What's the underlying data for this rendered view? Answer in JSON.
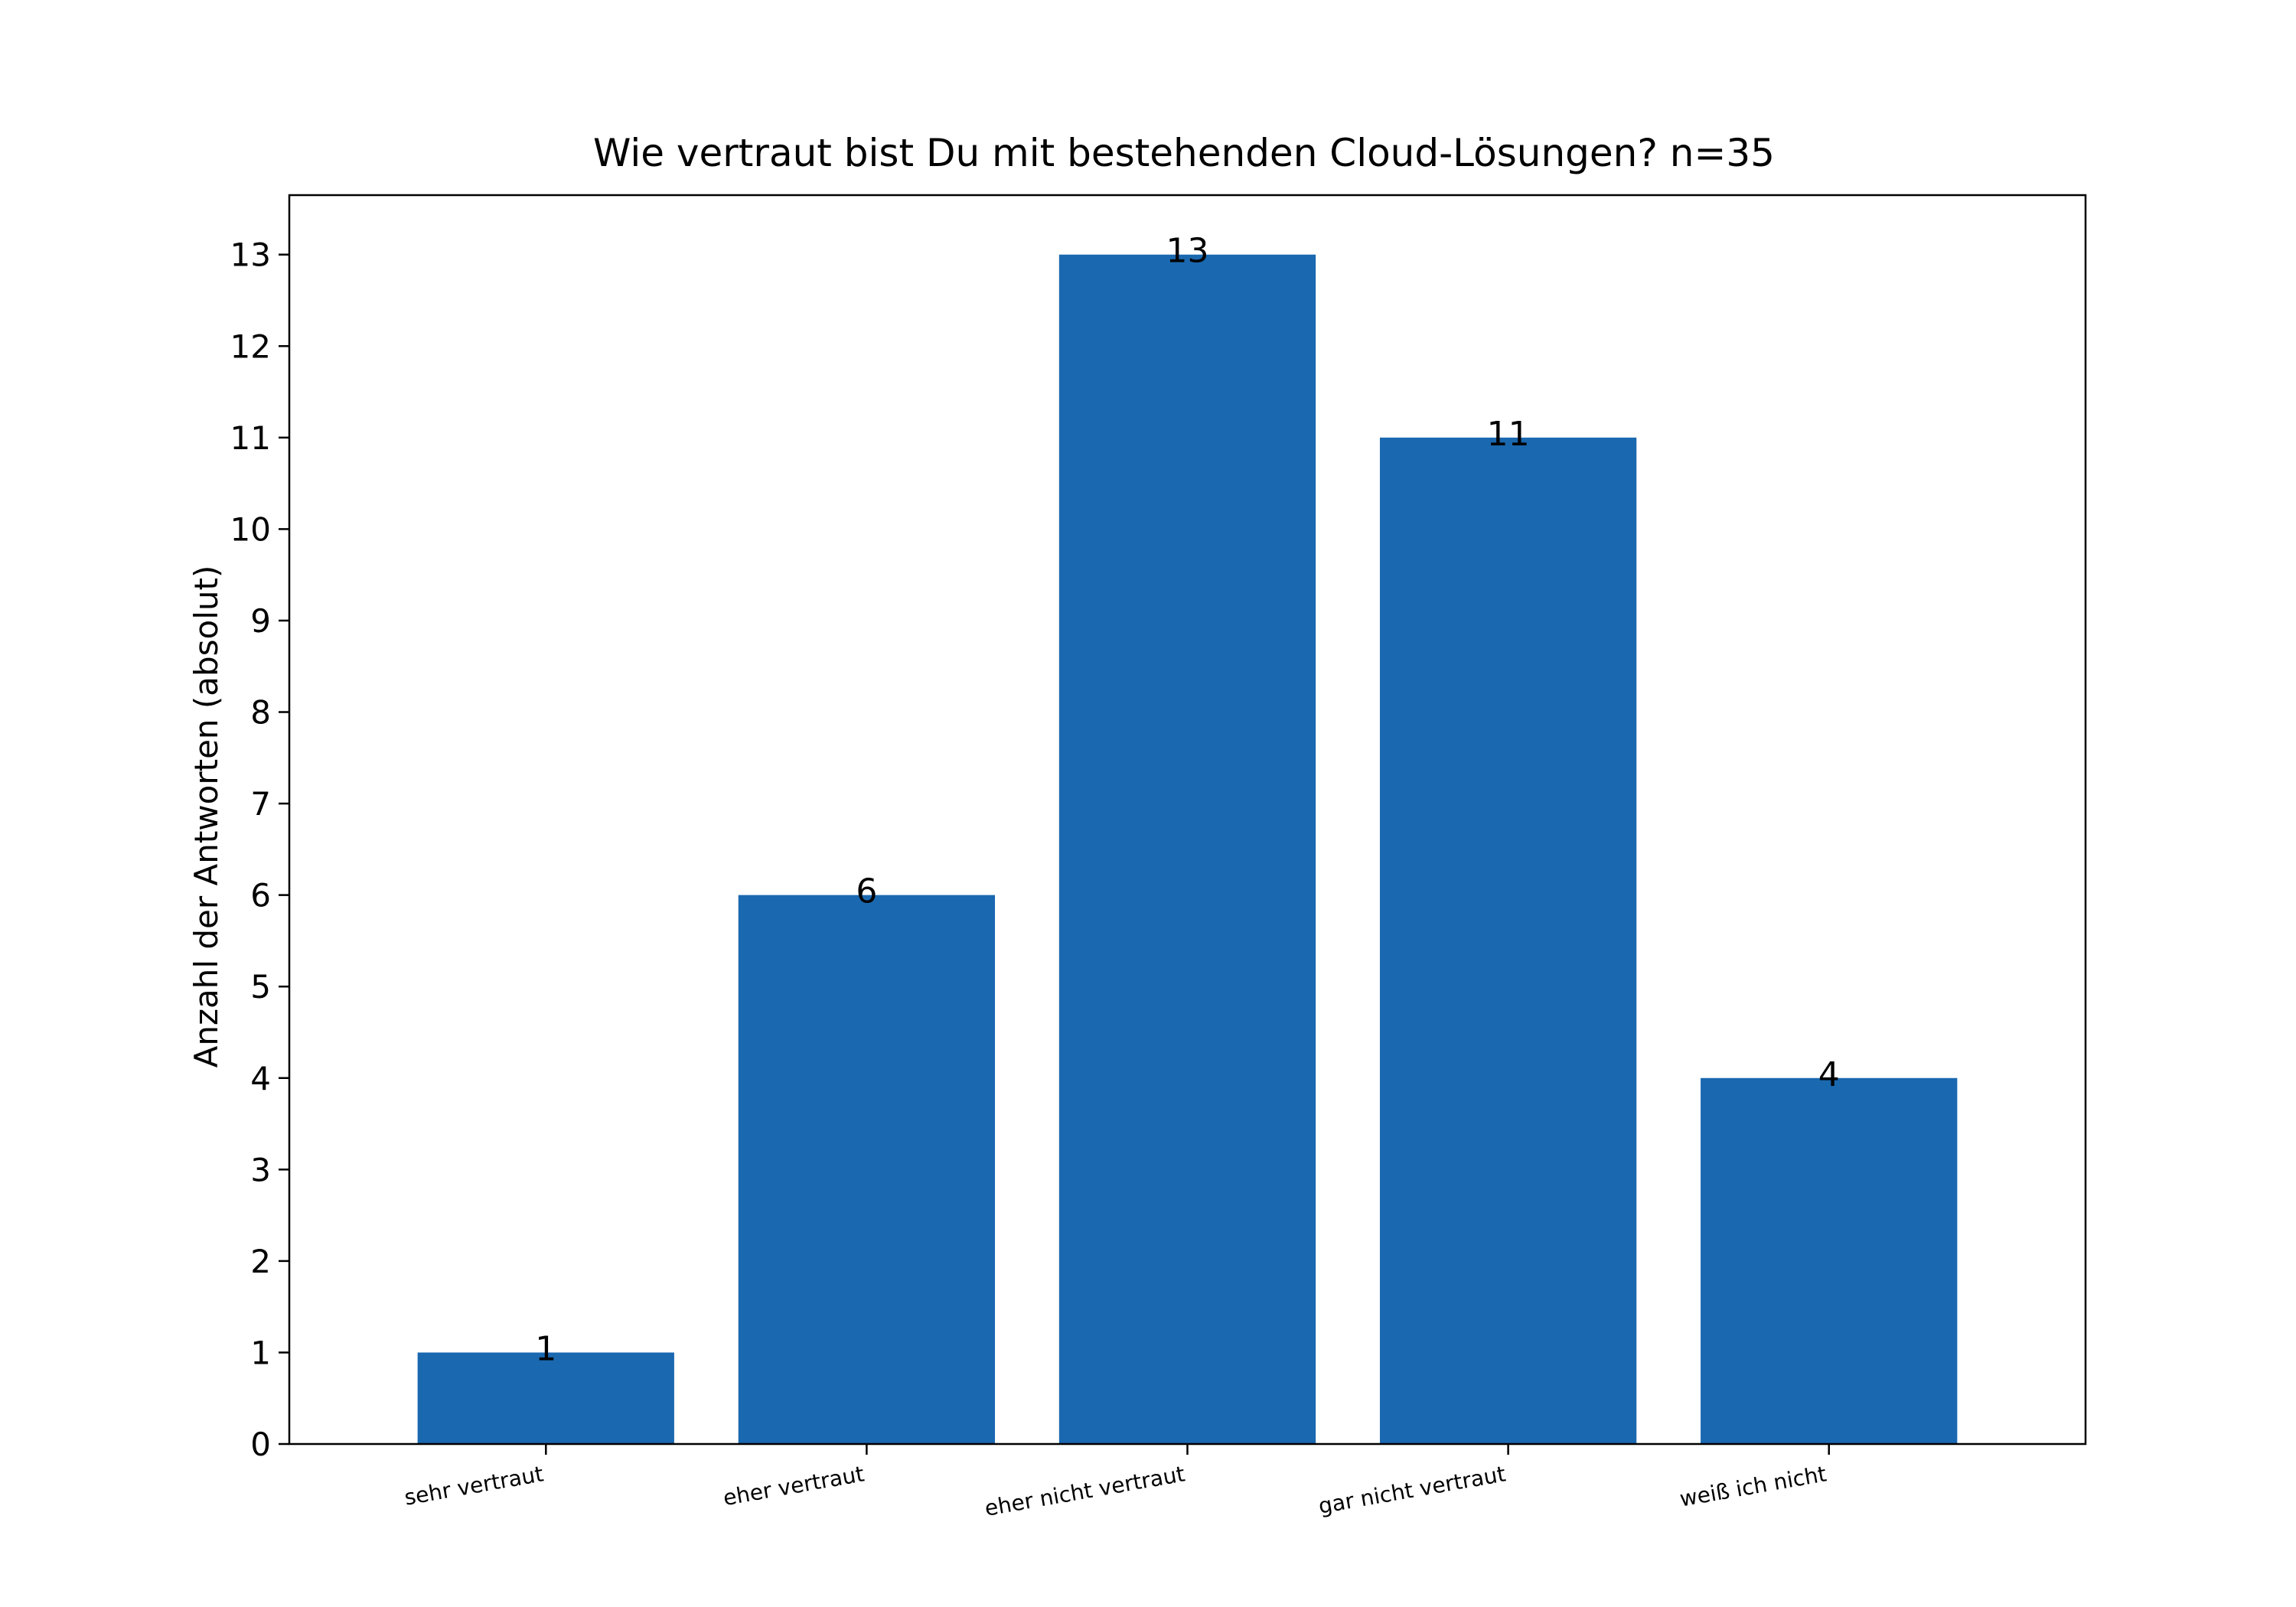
{
  "chart_data": {
    "type": "bar",
    "title": "Wie vertraut bist Du mit bestehenden Cloud-Lösungen? n=35",
    "xlabel": "",
    "ylabel": "Anzahl der Antworten (absolut)",
    "categories": [
      "sehr vertraut",
      "eher vertraut",
      "eher nicht vertraut",
      "gar nicht vertraut",
      "weiß ich nicht"
    ],
    "values": [
      1,
      6,
      13,
      11,
      4
    ],
    "data_labels": [
      "1",
      "6",
      "13",
      "11",
      "4"
    ],
    "ylim": [
      0,
      13.65
    ],
    "yticks": [
      0,
      1,
      2,
      3,
      4,
      5,
      6,
      7,
      8,
      9,
      10,
      11,
      12,
      13
    ],
    "ytick_labels": [
      "0",
      "1",
      "2",
      "3",
      "4",
      "5",
      "6",
      "7",
      "8",
      "9",
      "10",
      "11",
      "12",
      "13"
    ],
    "bar_color": "#1a68b0",
    "grid": false,
    "legend": "none"
  }
}
